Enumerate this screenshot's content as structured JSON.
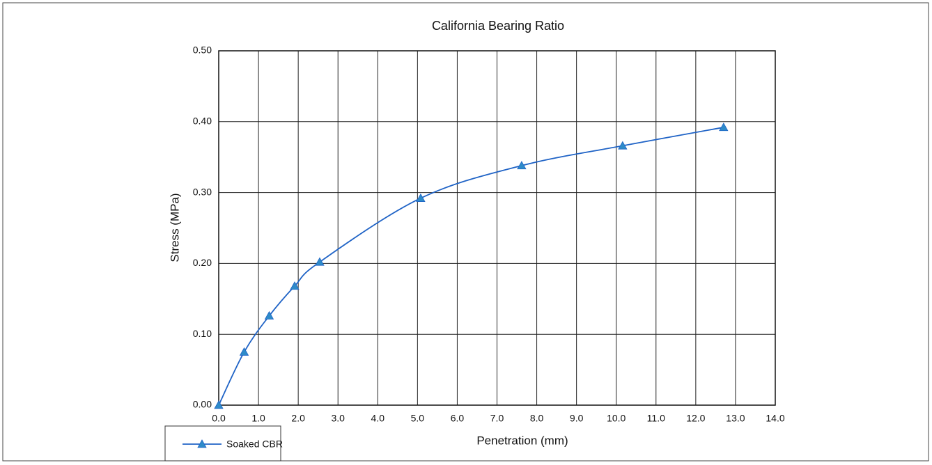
{
  "chart_data": {
    "type": "line",
    "title": "California Bearing Ratio",
    "x_label": "Penetration (mm)",
    "y_label": "Stress (MPa)",
    "x": [
      0,
      0.64,
      1.27,
      1.91,
      2.54,
      5.08,
      7.62,
      10.16,
      12.7
    ],
    "series": [
      {
        "name": "Soaked CBR",
        "color": "#1f63c6",
        "marker_color": "#2e8bc9",
        "values": [
          0,
          0.075,
          0.126,
          0.168,
          0.202,
          0.292,
          0.338,
          0.366,
          0.392
        ]
      }
    ],
    "xlim": [
      0,
      14
    ],
    "xticks": [
      {
        "value": 0,
        "label": "0.0"
      },
      {
        "value": 1,
        "label": "1.0"
      },
      {
        "value": 2,
        "label": "2.0"
      },
      {
        "value": 3,
        "label": "3.0"
      },
      {
        "value": 4,
        "label": "4.0"
      },
      {
        "value": 5,
        "label": "5.0"
      },
      {
        "value": 6,
        "label": "6.0"
      },
      {
        "value": 7,
        "label": "7.0"
      },
      {
        "value": 8,
        "label": "8.0"
      },
      {
        "value": 9,
        "label": "9.0"
      },
      {
        "value": 10,
        "label": "10.0"
      },
      {
        "value": 11,
        "label": "11.0"
      },
      {
        "value": 12,
        "label": "12.0"
      },
      {
        "value": 13,
        "label": "13.0"
      },
      {
        "value": 14,
        "label": "14.0"
      }
    ],
    "ylim": [
      0,
      0.5
    ],
    "yticks": [
      {
        "value": 0,
        "label": "0.00"
      },
      {
        "value": 0.1,
        "label": "0.10"
      },
      {
        "value": 0.2,
        "label": "0.20"
      },
      {
        "value": 0.3,
        "label": "0.30"
      },
      {
        "value": 0.4,
        "label": "0.40"
      },
      {
        "value": 0.5,
        "label": "0.50"
      }
    ],
    "grid": true,
    "legend": "bottom-left"
  }
}
